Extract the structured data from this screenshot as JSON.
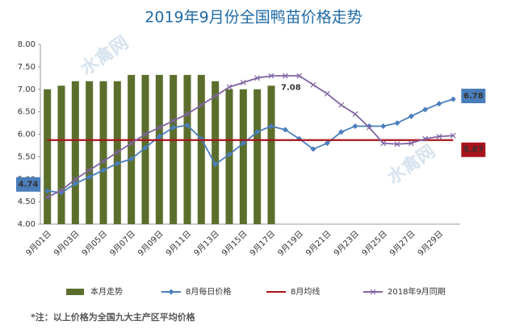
{
  "chart_data": {
    "type": "bar_line",
    "title": "2019年9月份全国鸭苗价格走势",
    "footnote": "*注：以上价格为全国九大主产区平均价格",
    "watermark": "水禽网",
    "categories": [
      "9月01日",
      null,
      "9月03日",
      null,
      "9月05日",
      null,
      "9月07日",
      null,
      "9月09日",
      null,
      "9月11日",
      null,
      "9月13日",
      null,
      "9月15日",
      null,
      "9月17日",
      null,
      "9月19日",
      null,
      "9月21日",
      null,
      "9月23日",
      null,
      "9月25日",
      null,
      "9月27日",
      null,
      "9月29日",
      null
    ],
    "ylim": [
      4,
      8
    ],
    "yticks": [
      {
        "value": 4,
        "label": "4.00"
      },
      {
        "value": 4.5,
        "label": "4.50"
      },
      {
        "value": 5,
        "label": "5.00"
      },
      {
        "value": 5.5,
        "label": "5.50"
      },
      {
        "value": 6,
        "label": "6.00"
      },
      {
        "value": 6.5,
        "label": "6.50"
      },
      {
        "value": 7,
        "label": "7.00"
      },
      {
        "value": 7.5,
        "label": "7.50"
      },
      {
        "value": 8,
        "label": "8.00"
      }
    ],
    "series": [
      {
        "name": "本月走势",
        "kind": "bar",
        "color": "#5b6e2c",
        "values": [
          7.0,
          7.08,
          7.18,
          7.18,
          7.18,
          7.18,
          7.32,
          7.32,
          7.32,
          7.32,
          7.32,
          7.32,
          7.18,
          7.0,
          7.0,
          7.0,
          7.08,
          null,
          null,
          null,
          null,
          null,
          null,
          null,
          null,
          null,
          null,
          null,
          null,
          null
        ],
        "value_labels": [
          null,
          null,
          null,
          null,
          null,
          null,
          null,
          null,
          null,
          null,
          null,
          null,
          null,
          null,
          null,
          null,
          "7.08",
          null,
          null,
          null,
          null,
          null,
          null,
          null,
          null,
          null,
          null,
          null,
          null,
          null
        ]
      },
      {
        "name": "8月每日价格",
        "kind": "line",
        "marker": "diamond",
        "color": "#4a7ebb",
        "values": [
          4.74,
          4.7,
          4.9,
          5.05,
          5.2,
          5.35,
          5.45,
          5.7,
          5.95,
          6.15,
          6.2,
          5.9,
          5.33,
          5.55,
          5.8,
          6.05,
          6.18,
          6.1,
          5.9,
          5.67,
          5.8,
          6.05,
          6.18,
          6.18,
          6.18,
          6.25,
          6.4,
          6.55,
          6.68,
          6.78
        ],
        "value_labels": [
          "4.74",
          null,
          null,
          null,
          null,
          null,
          null,
          null,
          null,
          null,
          null,
          null,
          null,
          null,
          null,
          null,
          null,
          null,
          null,
          null,
          null,
          null,
          null,
          null,
          null,
          null,
          null,
          null,
          null,
          "6.78"
        ]
      },
      {
        "name": "8月均线",
        "kind": "line",
        "marker": "none",
        "color": "#a8141c",
        "values": [
          5.87,
          5.87,
          5.87,
          5.87,
          5.87,
          5.87,
          5.87,
          5.87,
          5.87,
          5.87,
          5.87,
          5.87,
          5.87,
          5.87,
          5.87,
          5.87,
          5.87,
          5.87,
          5.87,
          5.87,
          5.87,
          5.87,
          5.87,
          5.87,
          5.87,
          5.87,
          5.87,
          5.87,
          5.87,
          5.87
        ],
        "value_labels": [
          null,
          null,
          null,
          null,
          null,
          null,
          null,
          null,
          null,
          null,
          null,
          null,
          null,
          null,
          null,
          null,
          null,
          null,
          null,
          null,
          null,
          null,
          null,
          null,
          null,
          null,
          null,
          null,
          null,
          "5.87"
        ]
      },
      {
        "name": "2018年9月同期",
        "kind": "line",
        "marker": "cross",
        "color": "#8064a2",
        "values": [
          4.6,
          4.75,
          5.0,
          5.2,
          5.4,
          5.6,
          5.8,
          6.0,
          6.15,
          6.3,
          6.45,
          6.65,
          6.85,
          7.05,
          7.15,
          7.25,
          7.3,
          7.3,
          7.3,
          7.1,
          6.9,
          6.65,
          6.45,
          6.15,
          5.8,
          5.78,
          5.8,
          5.9,
          5.95,
          5.97
        ]
      }
    ]
  }
}
